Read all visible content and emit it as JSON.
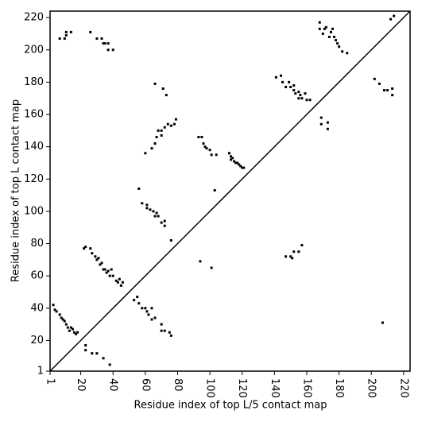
{
  "chart_data": {
    "type": "scatter",
    "xlabel": "Residue index of top L/5 contact map",
    "ylabel": "Residue index of top L contact map",
    "xlim": [
      1,
      224
    ],
    "ylim": [
      1,
      224
    ],
    "xticks": [
      1,
      20,
      40,
      60,
      80,
      100,
      120,
      140,
      160,
      180,
      200,
      220
    ],
    "yticks": [
      1,
      20,
      40,
      60,
      80,
      100,
      120,
      140,
      160,
      180,
      200,
      220
    ],
    "diagonal": true,
    "color": "#000000",
    "x": [
      7,
      10,
      11,
      11,
      14,
      26,
      30,
      33,
      34,
      35,
      37,
      37,
      40,
      22,
      23,
      26,
      27,
      29,
      30,
      31,
      32,
      33,
      34,
      35,
      36,
      37,
      38,
      39,
      40,
      42,
      43,
      44,
      45,
      46,
      3,
      4,
      5,
      7,
      8,
      9,
      10,
      11,
      12,
      13,
      14,
      15,
      16,
      17,
      18,
      23,
      23,
      27,
      30,
      34,
      38,
      53,
      55,
      56,
      58,
      60,
      61,
      62,
      64,
      64,
      66,
      70,
      70,
      72,
      75,
      76,
      56,
      58,
      61,
      61,
      63,
      65,
      66,
      67,
      68,
      70,
      72,
      72,
      76,
      60,
      64,
      66,
      67,
      68,
      70,
      70,
      72,
      74,
      76,
      78,
      79,
      66,
      71,
      73,
      93,
      95,
      96,
      97,
      98,
      100,
      101,
      104,
      103,
      94,
      101,
      112,
      113,
      113,
      114,
      115,
      116,
      117,
      118,
      119,
      120,
      121,
      141,
      144,
      145,
      147,
      149,
      150,
      152,
      152,
      153,
      155,
      155,
      156,
      157,
      159,
      160,
      162,
      168,
      168,
      170,
      171,
      172,
      174,
      175,
      176,
      177,
      178,
      179,
      180,
      182,
      185,
      202,
      205,
      208,
      210,
      213,
      213,
      212,
      214,
      147,
      150,
      151,
      152,
      155,
      157,
      169,
      169,
      173,
      173,
      207
    ],
    "values": [
      207,
      207,
      209,
      211,
      211,
      211,
      207,
      207,
      204,
      204,
      200,
      204,
      200,
      77,
      78,
      77,
      74,
      72,
      70,
      71,
      67,
      68,
      64,
      64,
      62,
      63,
      60,
      64,
      60,
      57,
      56,
      58,
      54,
      56,
      42,
      39,
      38,
      36,
      34,
      33,
      32,
      30,
      28,
      26,
      28,
      27,
      25,
      24,
      25,
      17,
      14,
      12,
      12,
      9,
      5,
      45,
      47,
      43,
      40,
      40,
      38,
      36,
      40,
      33,
      34,
      30,
      26,
      26,
      25,
      23,
      114,
      105,
      104,
      102,
      101,
      100,
      97,
      99,
      97,
      93,
      94,
      91,
      82,
      136,
      139,
      142,
      146,
      150,
      147,
      150,
      152,
      154,
      153,
      154,
      157,
      179,
      176,
      172,
      146,
      146,
      142,
      140,
      139,
      138,
      135,
      135,
      113,
      69,
      65,
      136,
      134,
      132,
      133,
      131,
      130,
      130,
      129,
      128,
      127,
      127,
      183,
      184,
      180,
      177,
      180,
      177,
      178,
      175,
      173,
      174,
      170,
      172,
      170,
      173,
      169,
      169,
      217,
      213,
      210,
      213,
      214,
      208,
      211,
      213,
      208,
      206,
      204,
      202,
      199,
      198,
      182,
      179,
      175,
      175,
      172,
      176,
      219,
      221,
      72,
      72,
      71,
      75,
      75,
      79,
      158,
      154,
      155,
      151,
      31
    ]
  }
}
